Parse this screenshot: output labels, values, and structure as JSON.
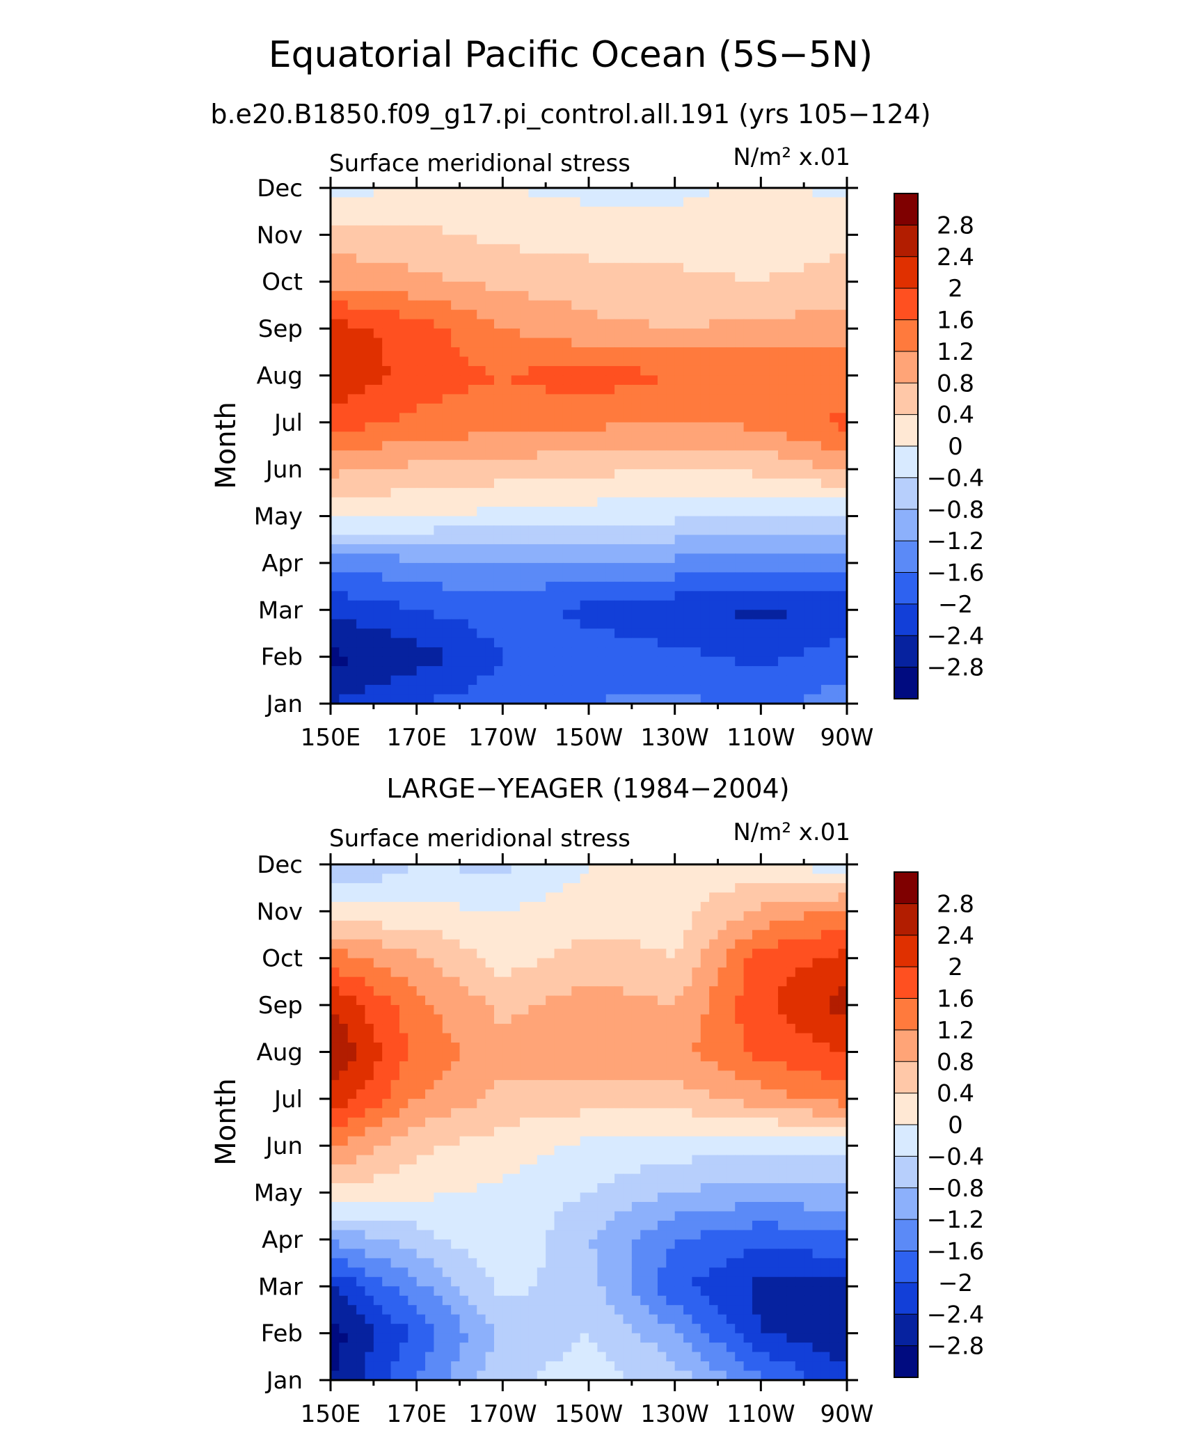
{
  "figure": {
    "title": "Equatorial Pacific Ocean (5S−5N)",
    "subtitle": "b.e20.B1850.f09_g17.pi_control.all.191 (yrs 105−124)",
    "second_title": "LARGE−YEAGER (1984−2004)"
  },
  "colorbar": {
    "levels": [
      "2.8",
      "2.4",
      "2",
      "1.6",
      "1.2",
      "0.8",
      "0.4",
      "0",
      "−0.4",
      "−0.8",
      "−1.2",
      "−1.6",
      "−2",
      "−2.4",
      "−2.8"
    ],
    "colors": [
      "#7f0000",
      "#b21d00",
      "#e03000",
      "#ff5020",
      "#ff7a3d",
      "#ffa477",
      "#ffc8a8",
      "#ffe8d4",
      "#d8eaff",
      "#b7cffc",
      "#8cb0fb",
      "#5b8af7",
      "#2e62f0",
      "#123fd8",
      "#06229f",
      "#000b80"
    ]
  },
  "chart_data": [
    {
      "type": "heatmap",
      "title": "Surface meridional stress",
      "units": "N/m² x.01",
      "ylabel": "Month",
      "xlabel": "",
      "x_tick_labels": [
        "150E",
        "170E",
        "170W",
        "150W",
        "130W",
        "110W",
        "90W"
      ],
      "x_range": [
        150,
        270
      ],
      "y_tick_labels": [
        "Jan",
        "Feb",
        "Mar",
        "Apr",
        "May",
        "Jun",
        "Jul",
        "Aug",
        "Sep",
        "Oct",
        "Nov",
        "Dec"
      ],
      "y_range": [
        1,
        12
      ],
      "x_nodes": [
        150,
        170,
        190,
        210,
        230,
        250,
        270
      ],
      "values": [
        [
          -2.4,
          -2.0,
          -1.8,
          -1.6,
          -1.5,
          -1.7,
          -1.4
        ],
        [
          -2.9,
          -2.6,
          -2.0,
          -1.8,
          -1.9,
          -2.1,
          -1.8
        ],
        [
          -2.3,
          -2.0,
          -1.8,
          -2.1,
          -2.3,
          -2.5,
          -2.3
        ],
        [
          -1.5,
          -1.3,
          -1.2,
          -1.3,
          -1.3,
          -1.4,
          -1.3
        ],
        [
          0.1,
          0.0,
          -0.1,
          -0.2,
          -0.3,
          -0.4,
          -0.5
        ],
        [
          0.9,
          0.7,
          0.6,
          0.5,
          0.4,
          0.5,
          0.9
        ],
        [
          1.8,
          1.5,
          1.4,
          1.3,
          1.2,
          1.3,
          1.7
        ],
        [
          2.4,
          1.8,
          1.6,
          1.8,
          1.6,
          1.5,
          1.4
        ],
        [
          2.2,
          1.8,
          1.2,
          0.9,
          0.8,
          0.9,
          1.0
        ],
        [
          1.1,
          0.9,
          0.7,
          0.6,
          0.5,
          0.4,
          0.6
        ],
        [
          0.6,
          0.5,
          0.3,
          0.2,
          0.2,
          0.1,
          0.3
        ],
        [
          -0.2,
          0.1,
          0.0,
          -0.1,
          -0.1,
          0.1,
          -0.1
        ]
      ]
    },
    {
      "type": "heatmap",
      "title": "Surface meridional stress",
      "units": "N/m² x.01",
      "ylabel": "Month",
      "xlabel": "",
      "x_tick_labels": [
        "150E",
        "170E",
        "170W",
        "150W",
        "130W",
        "110W",
        "90W"
      ],
      "x_range": [
        150,
        270
      ],
      "y_tick_labels": [
        "Jan",
        "Feb",
        "Mar",
        "Apr",
        "May",
        "Jun",
        "Jul",
        "Aug",
        "Sep",
        "Oct",
        "Nov",
        "Dec"
      ],
      "y_range": [
        1,
        12
      ],
      "x_nodes": [
        150,
        170,
        190,
        210,
        230,
        250,
        270
      ],
      "values": [
        [
          -2.8,
          -1.6,
          -0.5,
          -0.2,
          -0.6,
          -1.5,
          -2.3
        ],
        [
          -3.0,
          -1.9,
          -0.7,
          -0.4,
          -1.1,
          -2.4,
          -2.7
        ],
        [
          -2.4,
          -1.3,
          -0.3,
          -0.6,
          -1.9,
          -2.5,
          -2.5
        ],
        [
          -1.1,
          -0.6,
          0.0,
          -0.8,
          -1.6,
          -1.9,
          -1.7
        ],
        [
          0.3,
          0.1,
          -0.1,
          -0.4,
          -0.8,
          -1.0,
          -0.9
        ],
        [
          1.3,
          0.5,
          0.2,
          -0.1,
          -0.2,
          -0.3,
          -0.2
        ],
        [
          2.3,
          1.2,
          0.7,
          0.6,
          0.6,
          1.0,
          1.4
        ],
        [
          2.8,
          1.5,
          0.9,
          1.2,
          1.1,
          1.7,
          2.0
        ],
        [
          2.4,
          1.3,
          0.7,
          1.0,
          0.8,
          1.9,
          2.6
        ],
        [
          1.4,
          0.9,
          0.2,
          0.6,
          0.4,
          1.8,
          2.1
        ],
        [
          0.1,
          0.1,
          0.0,
          0.2,
          0.2,
          0.9,
          1.3
        ],
        [
          -0.9,
          -0.4,
          -0.5,
          0.0,
          0.2,
          0.1,
          -0.3
        ]
      ]
    }
  ]
}
